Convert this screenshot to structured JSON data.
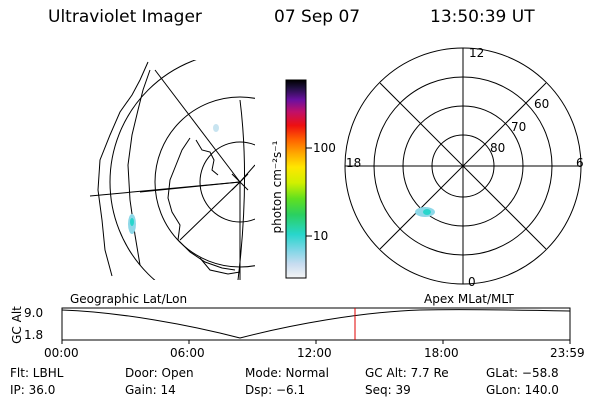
{
  "header": {
    "instrument": "Ultraviolet Imager",
    "date": "07 Sep 07",
    "time": "13:50:39 UT"
  },
  "colorbar": {
    "label": "photon cm⁻²s⁻¹",
    "ticks": [
      "100",
      "10"
    ]
  },
  "polar_plot": {
    "mlt_labels": {
      "top": "12",
      "left": "18",
      "right": "6",
      "bottom": "0"
    },
    "lat_labels": [
      "60",
      "70",
      "80"
    ]
  },
  "map_labels": {
    "left": "Geographic Lat/Lon",
    "right": "Apex MLat/MLT"
  },
  "altitude_plot": {
    "ylabel": "GC Alt",
    "yticks": [
      "9.0",
      "1.8"
    ],
    "xticks": [
      "00:00",
      "06:00",
      "12:00",
      "18:00",
      "23:59"
    ]
  },
  "status": {
    "filter": "Flt: LBHL",
    "door": "Door: Open",
    "mode": "Mode: Normal",
    "gc_alt": "GC Alt: 7.7 Re",
    "glat": "GLat: −58.8",
    "ip": "IP: 36.0",
    "gain": "Gain: 14",
    "dsp": "Dsp:   −6.1",
    "seq": "Seq: 39",
    "glon": "GLon: 140.0"
  }
}
